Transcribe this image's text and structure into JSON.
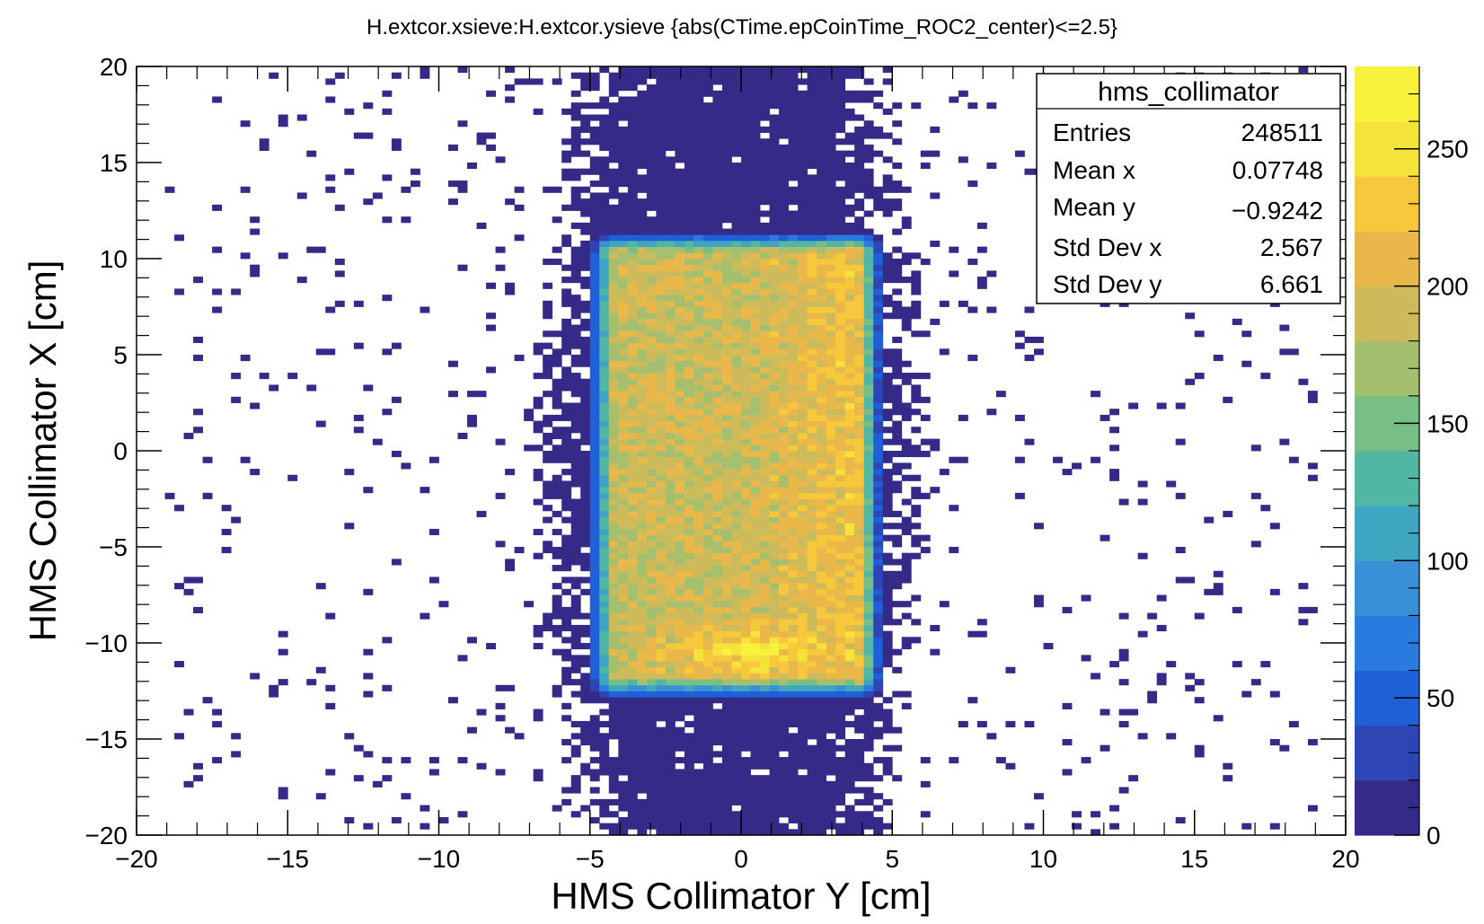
{
  "chart_data": {
    "type": "heatmap",
    "title": "H.extcor.xsieve:H.extcor.ysieve {abs(CTime.epCoinTime_ROC2_center)<=2.5}",
    "xlabel": "HMS Collimator Y [cm]",
    "ylabel": "HMS Collimator X [cm]",
    "xlim": [
      -20,
      20
    ],
    "ylim": [
      -20,
      20
    ],
    "x_ticks": [
      "−20",
      "−15",
      "−10",
      "−5",
      "0",
      "5",
      "10",
      "15",
      "20"
    ],
    "y_ticks": [
      "−20",
      "−15",
      "−10",
      "−5",
      "0",
      "5",
      "10",
      "15",
      "20"
    ],
    "bins": {
      "x": 128,
      "y": 128
    },
    "z_range": [
      0,
      280
    ],
    "z_ticks": [
      "0",
      "50",
      "100",
      "150",
      "200",
      "250"
    ],
    "colormap": [
      "#352a87",
      "#2d45b5",
      "#1f60d6",
      "#2a7be0",
      "#3990d6",
      "#3fa6c2",
      "#51b6a3",
      "#78bf86",
      "#a4bf6e",
      "#cdbb5b",
      "#eab84a",
      "#f7c83c",
      "#f5e23a",
      "#f8f23c"
    ],
    "grid": false,
    "legend": "top-right",
    "distribution": {
      "core": {
        "x_min": -4.6,
        "x_max": 4.2,
        "y_min": -12.0,
        "y_max": 10.6,
        "peak_counts": 270,
        "hotspot": {
          "x": 0,
          "y": -10.5
        }
      },
      "halo": {
        "x_min": -7.5,
        "x_max": 7.5,
        "y_min": -20,
        "y_max": 20
      },
      "sparse_range": {
        "x_min": -19,
        "x_max": 19
      }
    },
    "stats": {
      "name": "hms_collimator",
      "rows": [
        {
          "label": "Entries",
          "value": "248511"
        },
        {
          "label": "Mean x",
          "value": "0.07748"
        },
        {
          "label": "Mean y",
          "value": "−0.9242"
        },
        {
          "label": "Std Dev x",
          "value": "2.567"
        },
        {
          "label": "Std Dev y",
          "value": "6.661"
        }
      ]
    }
  }
}
